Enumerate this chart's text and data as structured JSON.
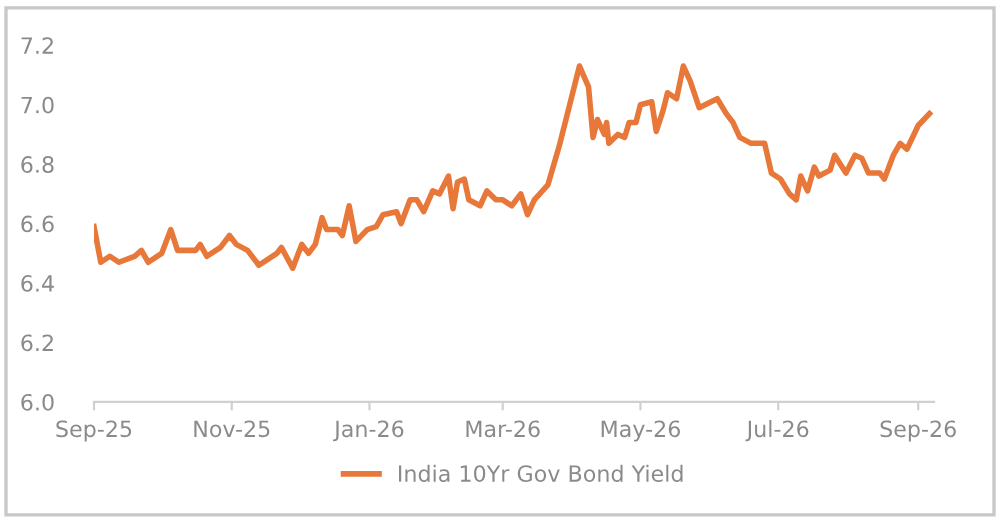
{
  "chart_data": {
    "type": "line",
    "legend": "bottom",
    "grid": false,
    "marker": "none",
    "line_style": "solid",
    "ylim": [
      6.0,
      7.2
    ],
    "yticks": [
      {
        "value": 6.0,
        "label": "6.0"
      },
      6.2,
      6.4,
      6.6,
      6.8,
      {
        "value": 7.0,
        "label": "7.0"
      },
      7.2
    ],
    "xlim": [
      "2025-09-01",
      "2026-09-08"
    ],
    "xticks": [
      {
        "value": "2025-09-01",
        "label": "Sep-25"
      },
      {
        "value": "2025-11-01",
        "label": "Nov-25"
      },
      {
        "value": "2026-01-01",
        "label": "Jan-26"
      },
      {
        "value": "2026-03-01",
        "label": "Mar-26"
      },
      {
        "value": "2026-05-01",
        "label": "May-26"
      },
      {
        "value": "2026-07-01",
        "label": "Jul-26"
      },
      {
        "value": "2026-09-01",
        "label": "Sep-26"
      }
    ],
    "x": [
      "2025-09-01",
      "2025-09-04",
      "2025-09-08",
      "2025-09-12",
      "2025-09-19",
      "2025-09-22",
      "2025-09-25",
      "2025-10-01",
      "2025-10-05",
      "2025-10-08",
      "2025-10-16",
      "2025-10-18",
      "2025-10-21",
      "2025-10-27",
      "2025-10-31",
      "2025-11-03",
      "2025-11-08",
      "2025-11-13",
      "2025-11-21",
      "2025-11-23",
      "2025-11-28",
      "2025-12-02",
      "2025-12-05",
      "2025-12-08",
      "2025-12-11",
      "2025-12-13",
      "2025-12-18",
      "2025-12-20",
      "2025-12-23",
      "2025-12-26",
      "2025-12-31",
      "2026-01-04",
      "2026-01-07",
      "2026-01-13",
      "2026-01-15",
      "2026-01-19",
      "2026-01-22",
      "2026-01-25",
      "2026-01-29",
      "2026-02-01",
      "2026-02-05",
      "2026-02-07",
      "2026-02-09",
      "2026-02-12",
      "2026-02-14",
      "2026-02-19",
      "2026-02-22",
      "2026-02-26",
      "2026-03-01",
      "2026-03-05",
      "2026-03-09",
      "2026-03-12",
      "2026-03-15",
      "2026-03-21",
      "2026-03-26",
      "2026-04-04",
      "2026-04-08",
      "2026-04-10",
      "2026-04-12",
      "2026-04-15",
      "2026-04-16",
      "2026-04-17",
      "2026-04-21",
      "2026-04-24",
      "2026-04-26",
      "2026-04-29",
      "2026-05-01",
      "2026-05-06",
      "2026-05-08",
      "2026-05-11",
      "2026-05-13",
      "2026-05-17",
      "2026-05-20",
      "2026-05-23",
      "2026-05-27",
      "2026-06-04",
      "2026-06-08",
      "2026-06-11",
      "2026-06-14",
      "2026-06-19",
      "2026-06-25",
      "2026-06-28",
      "2026-07-02",
      "2026-07-06",
      "2026-07-09",
      "2026-07-11",
      "2026-07-14",
      "2026-07-17",
      "2026-07-19",
      "2026-07-24",
      "2026-07-26",
      "2026-07-31",
      "2026-08-04",
      "2026-08-07",
      "2026-08-10",
      "2026-08-15",
      "2026-08-17",
      "2026-08-21",
      "2026-08-24",
      "2026-08-27",
      "2026-09-01",
      "2026-09-06"
    ],
    "series": [
      {
        "name": "India 10Yr Gov Bond Yield",
        "color": "#e8773a",
        "values": [
          6.59,
          6.47,
          6.49,
          6.47,
          6.49,
          6.51,
          6.47,
          6.5,
          6.58,
          6.51,
          6.51,
          6.53,
          6.49,
          6.52,
          6.56,
          6.53,
          6.51,
          6.46,
          6.5,
          6.52,
          6.45,
          6.53,
          6.5,
          6.53,
          6.62,
          6.58,
          6.58,
          6.56,
          6.66,
          6.54,
          6.58,
          6.59,
          6.63,
          6.64,
          6.6,
          6.68,
          6.68,
          6.64,
          6.71,
          6.7,
          6.76,
          6.65,
          6.74,
          6.75,
          6.68,
          6.66,
          6.71,
          6.68,
          6.68,
          6.66,
          6.7,
          6.63,
          6.68,
          6.73,
          6.86,
          7.13,
          7.06,
          6.89,
          6.95,
          6.9,
          6.94,
          6.87,
          6.9,
          6.89,
          6.94,
          6.94,
          7.0,
          7.01,
          6.91,
          6.98,
          7.04,
          7.02,
          7.13,
          7.08,
          6.99,
          7.02,
          6.97,
          6.94,
          6.89,
          6.87,
          6.87,
          6.77,
          6.75,
          6.7,
          6.68,
          6.76,
          6.71,
          6.79,
          6.76,
          6.78,
          6.83,
          6.77,
          6.83,
          6.82,
          6.77,
          6.77,
          6.75,
          6.83,
          6.87,
          6.85,
          6.93,
          6.97
        ]
      }
    ]
  }
}
